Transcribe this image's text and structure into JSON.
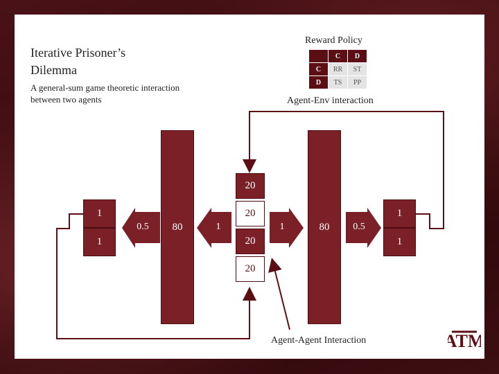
{
  "title_line1": "Iterative Prisoner’s",
  "title_line2": "Dilemma",
  "subtitle": "A general-sum game theoretic interaction between two agents",
  "reward_policy": {
    "title": "Reward Policy",
    "col_headers": [
      "C",
      "D"
    ],
    "rows": [
      {
        "header": "C",
        "cells": [
          "RR",
          "ST"
        ]
      },
      {
        "header": "D",
        "cells": [
          "TS",
          "PP"
        ]
      }
    ]
  },
  "labels": {
    "agent_env": "Agent-Env interaction",
    "agent_agent": "Agent-Agent Interaction"
  },
  "left_boxes": [
    "1",
    "1"
  ],
  "right_boxes": [
    "1",
    "1"
  ],
  "left_bar": "80",
  "right_bar": "80",
  "center_stack": [
    "20",
    "20",
    "20",
    "20"
  ],
  "arrows": {
    "left_outer": "0.5",
    "left_inner": "1",
    "right_inner": "1",
    "right_outer": "0.5"
  },
  "logo_text": "ATM",
  "colors": {
    "maroon": "#7b2026",
    "dark_maroon": "#5b0f14"
  }
}
